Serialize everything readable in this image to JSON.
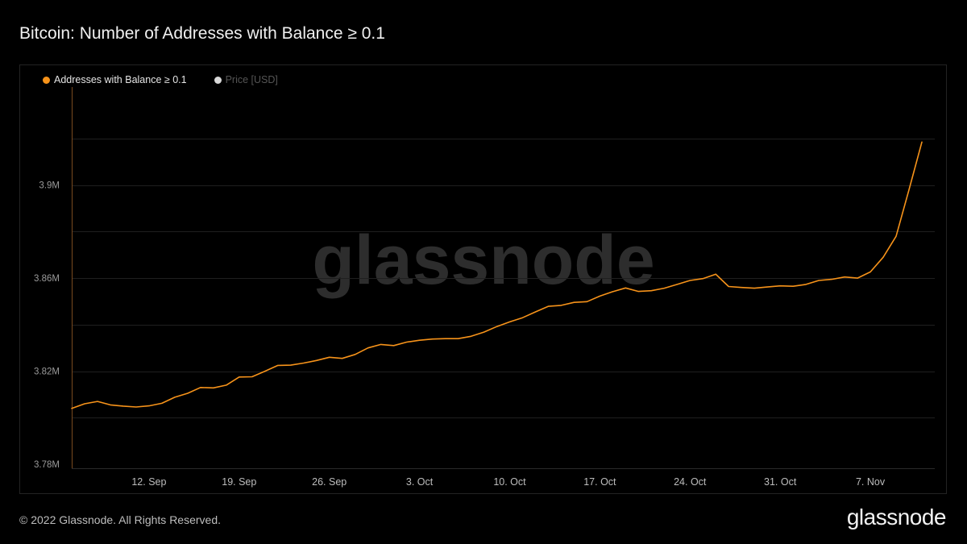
{
  "page": {
    "title": "Bitcoin: Number of Addresses with Balance ≥ 0.1",
    "footer": "© 2022 Glassnode. All Rights Reserved.",
    "brand": "glassnode",
    "watermark": "glassnode"
  },
  "legend": [
    {
      "label": "Addresses with Balance ≥ 0.1",
      "color": "#f7931a",
      "active": true
    },
    {
      "label": "Price [USD]",
      "color": "#d9d9d9",
      "active": false
    }
  ],
  "chart_data": {
    "type": "line",
    "title": "Bitcoin: Number of Addresses with Balance ≥ 0.1",
    "x_start": "2022-09-06",
    "x_end": "2022-11-11",
    "x_ticks": [
      {
        "date": "2022-09-12",
        "label": "12. Sep"
      },
      {
        "date": "2022-09-19",
        "label": "19. Sep"
      },
      {
        "date": "2022-09-26",
        "label": "26. Sep"
      },
      {
        "date": "2022-10-03",
        "label": "3. Oct"
      },
      {
        "date": "2022-10-10",
        "label": "10. Oct"
      },
      {
        "date": "2022-10-17",
        "label": "17. Oct"
      },
      {
        "date": "2022-10-24",
        "label": "24. Oct"
      },
      {
        "date": "2022-10-31",
        "label": "31. Oct"
      },
      {
        "date": "2022-11-07",
        "label": "7. Nov"
      }
    ],
    "y_ticks": [
      {
        "value": 3780000,
        "label": "3.78M"
      },
      {
        "value": 3820000,
        "label": "3.82M"
      },
      {
        "value": 3860000,
        "label": "3.86M"
      },
      {
        "value": 3900000,
        "label": "3.9M"
      }
    ],
    "ylim": [
      3780000,
      3920000
    ],
    "grid": true,
    "series": [
      {
        "name": "Addresses with Balance ≥ 0.1",
        "color": "#f7931a",
        "points": [
          [
            "2022-09-06",
            3804000
          ],
          [
            "2022-09-07",
            3806000
          ],
          [
            "2022-09-08",
            3807000
          ],
          [
            "2022-09-09",
            3805500
          ],
          [
            "2022-09-10",
            3805000
          ],
          [
            "2022-09-11",
            3804600
          ],
          [
            "2022-09-12",
            3805100
          ],
          [
            "2022-09-13",
            3806200
          ],
          [
            "2022-09-14",
            3808800
          ],
          [
            "2022-09-15",
            3810500
          ],
          [
            "2022-09-16",
            3813000
          ],
          [
            "2022-09-17",
            3812800
          ],
          [
            "2022-09-18",
            3814000
          ],
          [
            "2022-09-19",
            3817500
          ],
          [
            "2022-09-20",
            3817600
          ],
          [
            "2022-09-21",
            3820000
          ],
          [
            "2022-09-22",
            3822500
          ],
          [
            "2022-09-23",
            3822600
          ],
          [
            "2022-09-24",
            3823500
          ],
          [
            "2022-09-25",
            3824600
          ],
          [
            "2022-09-26",
            3826000
          ],
          [
            "2022-09-27",
            3825500
          ],
          [
            "2022-09-28",
            3827200
          ],
          [
            "2022-09-29",
            3830000
          ],
          [
            "2022-09-30",
            3831500
          ],
          [
            "2022-10-01",
            3831000
          ],
          [
            "2022-10-02",
            3832500
          ],
          [
            "2022-10-03",
            3833300
          ],
          [
            "2022-10-04",
            3833800
          ],
          [
            "2022-10-05",
            3834000
          ],
          [
            "2022-10-06",
            3834000
          ],
          [
            "2022-10-07",
            3835000
          ],
          [
            "2022-10-08",
            3836800
          ],
          [
            "2022-10-09",
            3839200
          ],
          [
            "2022-10-10",
            3841200
          ],
          [
            "2022-10-11",
            3843000
          ],
          [
            "2022-10-12",
            3845500
          ],
          [
            "2022-10-13",
            3847900
          ],
          [
            "2022-10-14",
            3848300
          ],
          [
            "2022-10-15",
            3849600
          ],
          [
            "2022-10-16",
            3849900
          ],
          [
            "2022-10-17",
            3852300
          ],
          [
            "2022-10-18",
            3854200
          ],
          [
            "2022-10-19",
            3855800
          ],
          [
            "2022-10-20",
            3854300
          ],
          [
            "2022-10-21",
            3854600
          ],
          [
            "2022-10-22",
            3855700
          ],
          [
            "2022-10-23",
            3857300
          ],
          [
            "2022-10-24",
            3859000
          ],
          [
            "2022-10-25",
            3859800
          ],
          [
            "2022-10-26",
            3861700
          ],
          [
            "2022-10-27",
            3856400
          ],
          [
            "2022-10-28",
            3856000
          ],
          [
            "2022-10-29",
            3855700
          ],
          [
            "2022-10-30",
            3856200
          ],
          [
            "2022-10-31",
            3856700
          ],
          [
            "2022-11-01",
            3856500
          ],
          [
            "2022-11-02",
            3857300
          ],
          [
            "2022-11-03",
            3859000
          ],
          [
            "2022-11-04",
            3859500
          ],
          [
            "2022-11-05",
            3860500
          ],
          [
            "2022-11-06",
            3860000
          ],
          [
            "2022-11-07",
            3862700
          ],
          [
            "2022-11-08",
            3869000
          ],
          [
            "2022-11-09",
            3878000
          ],
          [
            "2022-11-10",
            3898000
          ],
          [
            "2022-11-11",
            3918500
          ]
        ]
      }
    ]
  }
}
